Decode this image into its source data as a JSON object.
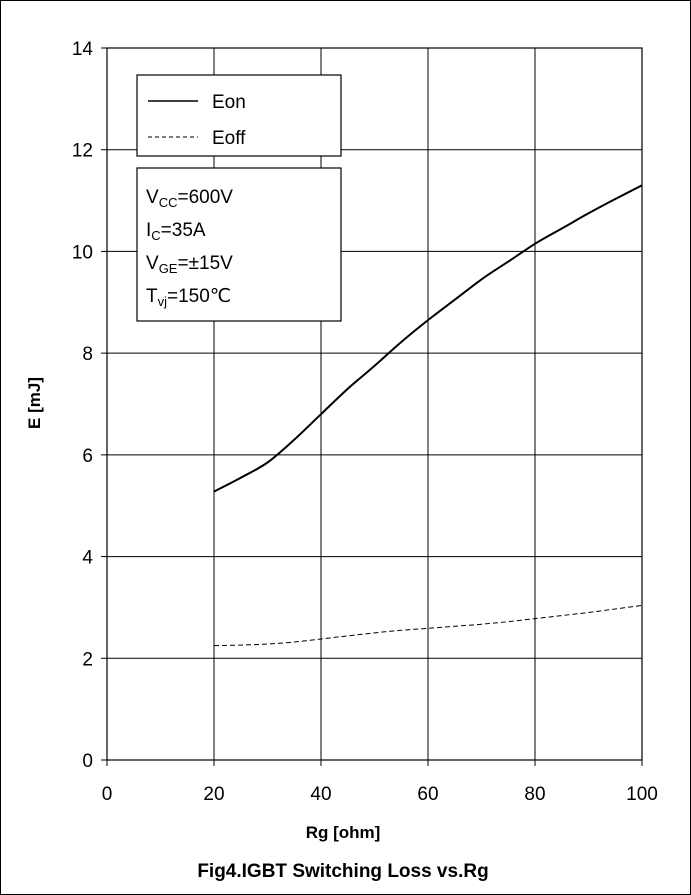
{
  "chart_data": {
    "type": "line",
    "title": "Fig4.IGBT Switching Loss vs.Rg",
    "xlabel": "Rg  [ohm]",
    "ylabel": "E  [mJ]",
    "xlim": [
      0,
      100
    ],
    "ylim": [
      0,
      14
    ],
    "x_ticks": [
      "0",
      "20",
      "40",
      "60",
      "80",
      "100"
    ],
    "y_ticks": [
      "0",
      "2",
      "4",
      "6",
      "8",
      "10",
      "12",
      "14"
    ],
    "grid": true,
    "legend_position": "top-left",
    "series": [
      {
        "name": "Eon",
        "style": "solid",
        "x": [
          20,
          25,
          30,
          35,
          40,
          45,
          50,
          55,
          60,
          65,
          70,
          75,
          80,
          85,
          90,
          95,
          100
        ],
        "y": [
          5.28,
          5.55,
          5.85,
          6.3,
          6.8,
          7.3,
          7.75,
          8.22,
          8.65,
          9.05,
          9.45,
          9.8,
          10.15,
          10.45,
          10.75,
          11.03,
          11.3
        ]
      },
      {
        "name": "Eoff",
        "style": "dashed",
        "x": [
          20,
          25,
          30,
          35,
          40,
          45,
          50,
          55,
          60,
          65,
          70,
          75,
          80,
          85,
          90,
          95,
          100
        ],
        "y": [
          2.25,
          2.26,
          2.28,
          2.32,
          2.38,
          2.44,
          2.5,
          2.55,
          2.59,
          2.63,
          2.67,
          2.72,
          2.78,
          2.84,
          2.9,
          2.97,
          3.04
        ]
      }
    ],
    "conditions": [
      {
        "main": "V",
        "sub": "CC",
        "rest": "=600V"
      },
      {
        "main": "I",
        "sub": "C",
        "rest": "=35A"
      },
      {
        "main": "V",
        "sub": "GE",
        "rest": "=±15V"
      },
      {
        "main": "T",
        "sub": "vj",
        "rest": "=150℃"
      }
    ]
  }
}
